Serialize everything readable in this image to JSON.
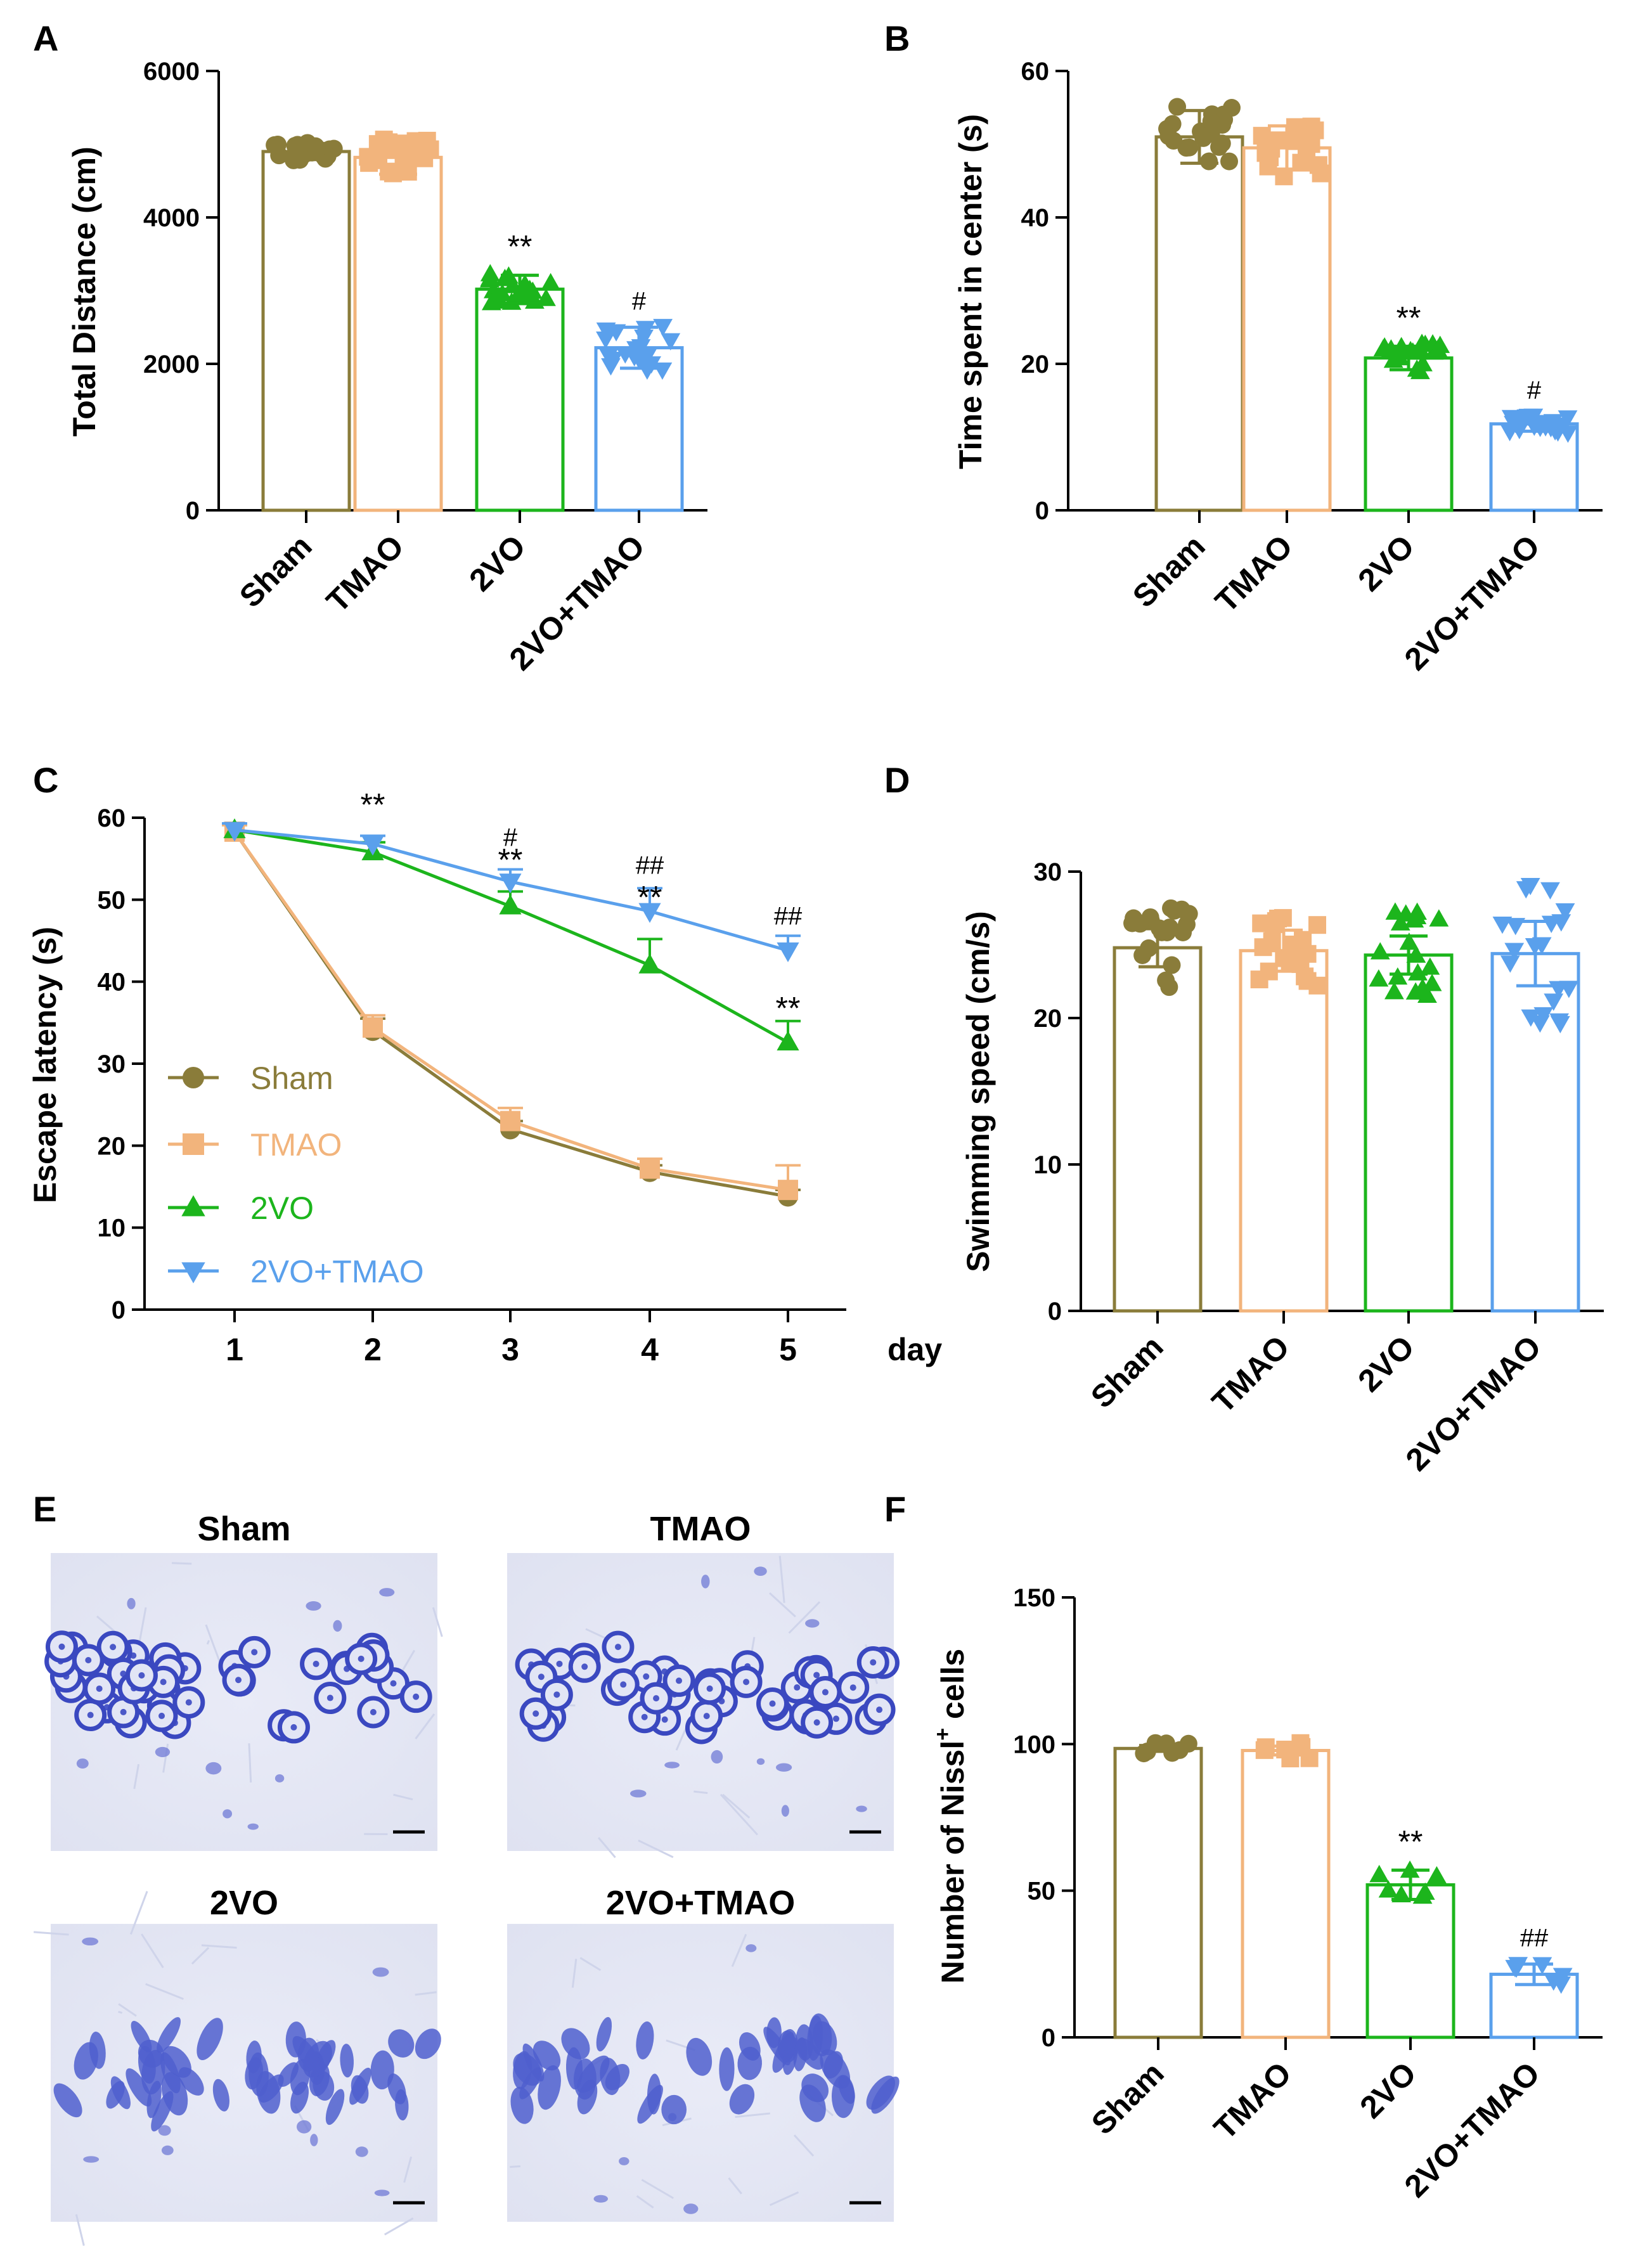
{
  "colors": {
    "Sham": "#8a7c3a",
    "TMAO": "#f2b47c",
    "2VO": "#1cb51c",
    "2VO+TMAO": "#5aa0ec"
  },
  "chart_data": [
    {
      "panel": "A",
      "type": "bar",
      "ylabel": "Total Distance (cm)",
      "ylim": [
        0,
        6000
      ],
      "yticks": [
        0,
        2000,
        4000,
        6000
      ],
      "categories": [
        "Sham",
        "TMAO",
        "2VO",
        "2VO+TMAO"
      ],
      "markers": [
        "circle",
        "square",
        "triangle-up",
        "triangle-down"
      ],
      "values": [
        4900,
        4820,
        3020,
        2220
      ],
      "errors": [
        110,
        230,
        190,
        280
      ],
      "spread": [
        130,
        260,
        210,
        300
      ],
      "significance": [
        "",
        "",
        "**",
        "#"
      ]
    },
    {
      "panel": "B",
      "type": "bar",
      "ylabel": "Time spent in center (s)",
      "ylim": [
        0,
        60
      ],
      "yticks": [
        0,
        20,
        40,
        60
      ],
      "categories": [
        "Sham",
        "TMAO",
        "2VO",
        "2VO+TMAO"
      ],
      "markers": [
        "circle",
        "square",
        "triangle-up",
        "triangle-down"
      ],
      "values": [
        51,
        49.5,
        20.8,
        11.8
      ],
      "errors": [
        3.6,
        3.0,
        1.6,
        1.0
      ],
      "spread": [
        4.5,
        4.0,
        2.0,
        1.2
      ],
      "significance": [
        "",
        "",
        "**",
        "#"
      ]
    },
    {
      "panel": "C",
      "type": "line",
      "ylabel": "Escape latency (s)",
      "xlabel": "day",
      "x": [
        1,
        2,
        3,
        4,
        5
      ],
      "ylim": [
        0,
        60
      ],
      "yticks": [
        0,
        10,
        20,
        30,
        40,
        50,
        60
      ],
      "series": [
        {
          "name": "Sham",
          "marker": "circle",
          "values": [
            58.3,
            34.0,
            22.0,
            16.8,
            13.8
          ],
          "errors": [
            0.8,
            1.5,
            1.0,
            0.8,
            0.8
          ]
        },
        {
          "name": "TMAO",
          "marker": "square",
          "values": [
            58.3,
            34.4,
            23.0,
            17.2,
            14.6
          ],
          "errors": [
            0.8,
            1.5,
            1.6,
            1.2,
            3.0
          ]
        },
        {
          "name": "2VO",
          "marker": "triangle-up",
          "values": [
            58.5,
            55.8,
            49.2,
            42.0,
            32.6
          ],
          "errors": [
            0.8,
            1.2,
            1.8,
            3.2,
            2.6
          ]
        },
        {
          "name": "2VO+TMAO",
          "marker": "triangle-down",
          "values": [
            58.5,
            56.8,
            52.2,
            48.6,
            43.8
          ],
          "errors": [
            0.8,
            1.0,
            1.5,
            2.8,
            1.8
          ]
        }
      ],
      "annotations": [
        {
          "x": 2,
          "y": 61.5,
          "text": "**"
        },
        {
          "x": 3,
          "y": 57.8,
          "text": "#"
        },
        {
          "x": 3,
          "y": 54.8,
          "text": "**"
        },
        {
          "x": 4,
          "y": 54.4,
          "text": "##"
        },
        {
          "x": 4,
          "y": 50.2,
          "text": "**"
        },
        {
          "x": 5,
          "y": 48.2,
          "text": "##"
        },
        {
          "x": 5,
          "y": 36.7,
          "text": "**"
        }
      ],
      "legend_position": "bottom-left"
    },
    {
      "panel": "D",
      "type": "bar",
      "ylabel": "Swimming speed (cm/s)",
      "ylim": [
        0,
        30
      ],
      "yticks": [
        0,
        10,
        20,
        30
      ],
      "categories": [
        "Sham",
        "TMAO",
        "2VO",
        "2VO+TMAO"
      ],
      "markers": [
        "circle",
        "square",
        "triangle-up",
        "triangle-down"
      ],
      "values": [
        24.8,
        24.6,
        24.3,
        24.4
      ],
      "errors": [
        1.3,
        1.4,
        1.3,
        2.2
      ],
      "spread": [
        2.8,
        2.4,
        3.0,
        5.2
      ],
      "significance": [
        "",
        "",
        "",
        ""
      ]
    },
    {
      "panel": "F",
      "type": "bar",
      "ylabel_main": "Number of Nissl",
      "ylabel_sup": "+",
      "ylabel_end": " cells",
      "ylim": [
        0,
        150
      ],
      "yticks": [
        0,
        50,
        100,
        150
      ],
      "categories": [
        "Sham",
        "TMAO",
        "2VO",
        "2VO+TMAO"
      ],
      "markers": [
        "circle",
        "square",
        "triangle-up",
        "triangle-down"
      ],
      "values": [
        98.5,
        97.8,
        52,
        21.5
      ],
      "errors": [
        1.0,
        1.5,
        5.0,
        3.5
      ],
      "spread": [
        2.0,
        3.0,
        5.5,
        3.8
      ],
      "significance": [
        "",
        "",
        "**",
        "##"
      ]
    }
  ],
  "panel_e": {
    "label": "E",
    "titles": [
      "Sham",
      "TMAO",
      "2VO",
      "2VO+TMAO"
    ]
  }
}
